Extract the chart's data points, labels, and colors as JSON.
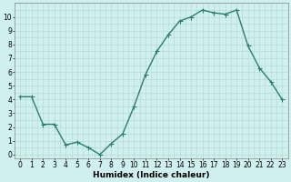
{
  "x": [
    0,
    1,
    2,
    3,
    4,
    5,
    6,
    7,
    8,
    9,
    10,
    11,
    12,
    13,
    14,
    15,
    16,
    17,
    18,
    19,
    20,
    21,
    22,
    23
  ],
  "y": [
    4.2,
    4.2,
    2.2,
    2.2,
    0.7,
    0.9,
    0.5,
    0.0,
    0.8,
    1.5,
    3.5,
    5.8,
    7.5,
    8.7,
    9.7,
    10.0,
    10.5,
    10.3,
    10.2,
    10.5,
    7.9,
    6.3,
    5.3,
    4.0
  ],
  "line_color": "#2d7d6e",
  "marker": "D",
  "marker_size": 1.8,
  "line_width": 1.0,
  "bg_color": "#cff0ee",
  "grid_color_major": "#b0d8ce",
  "grid_color_minor": "#b0d8ce",
  "xlabel": "Humidex (Indice chaleur)",
  "xlim": [
    -0.5,
    23.5
  ],
  "ylim": [
    -0.3,
    11.0
  ],
  "yticks": [
    0,
    1,
    2,
    3,
    4,
    5,
    6,
    7,
    8,
    9,
    10
  ],
  "xticks": [
    0,
    1,
    2,
    3,
    4,
    5,
    6,
    7,
    8,
    9,
    10,
    11,
    12,
    13,
    14,
    15,
    16,
    17,
    18,
    19,
    20,
    21,
    22,
    23
  ],
  "xlabel_fontsize": 6.5,
  "tick_fontsize": 5.5
}
